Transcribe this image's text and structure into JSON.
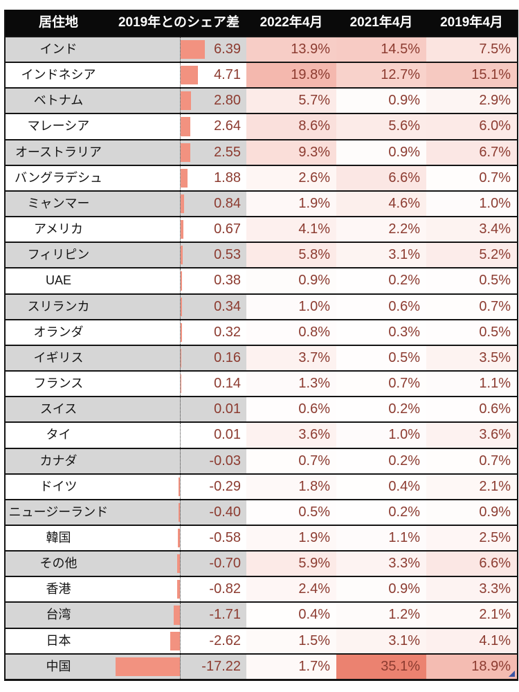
{
  "chart_data": {
    "type": "table",
    "title": "",
    "columns": [
      "居住地",
      "2019年とのシェア差",
      "2022年4月",
      "2021年4月",
      "2019年4月"
    ],
    "rows": [
      {
        "name": "インド",
        "diff": 6.39,
        "apr2022": 13.9,
        "apr2021": 14.5,
        "apr2019": 7.5
      },
      {
        "name": "インドネシア",
        "diff": 4.71,
        "apr2022": 19.8,
        "apr2021": 12.7,
        "apr2019": 15.1
      },
      {
        "name": "ベトナム",
        "diff": 2.8,
        "apr2022": 5.7,
        "apr2021": 0.9,
        "apr2019": 2.9
      },
      {
        "name": "マレーシア",
        "diff": 2.64,
        "apr2022": 8.6,
        "apr2021": 5.6,
        "apr2019": 6.0
      },
      {
        "name": "オーストラリア",
        "diff": 2.55,
        "apr2022": 9.3,
        "apr2021": 0.9,
        "apr2019": 6.7
      },
      {
        "name": "バングラデシュ",
        "diff": 1.88,
        "apr2022": 2.6,
        "apr2021": 6.6,
        "apr2019": 0.7
      },
      {
        "name": "ミャンマー",
        "diff": 0.84,
        "apr2022": 1.9,
        "apr2021": 4.6,
        "apr2019": 1.0
      },
      {
        "name": "アメリカ",
        "diff": 0.67,
        "apr2022": 4.1,
        "apr2021": 2.2,
        "apr2019": 3.4
      },
      {
        "name": "フィリピン",
        "diff": 0.53,
        "apr2022": 5.8,
        "apr2021": 3.1,
        "apr2019": 5.2
      },
      {
        "name": "UAE",
        "diff": 0.38,
        "apr2022": 0.9,
        "apr2021": 0.2,
        "apr2019": 0.5
      },
      {
        "name": "スリランカ",
        "diff": 0.34,
        "apr2022": 1.0,
        "apr2021": 0.6,
        "apr2019": 0.7
      },
      {
        "name": "オランダ",
        "diff": 0.32,
        "apr2022": 0.8,
        "apr2021": 0.3,
        "apr2019": 0.5
      },
      {
        "name": "イギリス",
        "diff": 0.16,
        "apr2022": 3.7,
        "apr2021": 0.5,
        "apr2019": 3.5
      },
      {
        "name": "フランス",
        "diff": 0.14,
        "apr2022": 1.3,
        "apr2021": 0.7,
        "apr2019": 1.1
      },
      {
        "name": "スイス",
        "diff": 0.01,
        "apr2022": 0.6,
        "apr2021": 0.2,
        "apr2019": 0.6
      },
      {
        "name": "タイ",
        "diff": 0.01,
        "apr2022": 3.6,
        "apr2021": 1.0,
        "apr2019": 3.6
      },
      {
        "name": "カナダ",
        "diff": -0.03,
        "apr2022": 0.7,
        "apr2021": 0.2,
        "apr2019": 0.7
      },
      {
        "name": "ドイツ",
        "diff": -0.29,
        "apr2022": 1.8,
        "apr2021": 0.4,
        "apr2019": 2.1
      },
      {
        "name": "ニュージーランド",
        "diff": -0.4,
        "apr2022": 0.5,
        "apr2021": 0.2,
        "apr2019": 0.9
      },
      {
        "name": "韓国",
        "diff": -0.58,
        "apr2022": 1.9,
        "apr2021": 1.1,
        "apr2019": 2.5
      },
      {
        "name": "その他",
        "diff": -0.7,
        "apr2022": 5.9,
        "apr2021": 3.3,
        "apr2019": 6.6
      },
      {
        "name": "香港",
        "diff": -0.82,
        "apr2022": 2.4,
        "apr2021": 0.9,
        "apr2019": 3.3
      },
      {
        "name": "台湾",
        "diff": -1.71,
        "apr2022": 0.4,
        "apr2021": 1.2,
        "apr2019": 2.1
      },
      {
        "name": "日本",
        "diff": -2.62,
        "apr2022": 1.5,
        "apr2021": 3.1,
        "apr2019": 4.1
      },
      {
        "name": "中国",
        "diff": -17.22,
        "apr2022": 1.7,
        "apr2021": 35.1,
        "apr2019": 18.9
      }
    ],
    "conditional_formatting": {
      "share_diff_databar": {
        "min": -17.22,
        "max": 6.39,
        "bar_color": "#f29280",
        "axis": "dotted vertical line between negative and positive bars"
      },
      "percent_color_scale": {
        "min_value": 0,
        "max_value": 35.1,
        "min_color": "#ffffff",
        "max_color": "#eb8270"
      }
    },
    "layout_hints": {
      "striped_rows": "odd rows gray, even rows white (name and diff columns only)",
      "header": "black background, white bold text"
    }
  },
  "colors": {
    "header_bg": "#0a0a0a",
    "header_text": "#ffffff",
    "stripe_gray": "#d6d6d6",
    "stripe_white": "#ffffff",
    "bar_fill": "#f29280",
    "number_text": "#8c3b30",
    "name_text": "#141414",
    "border": "#141414",
    "scale_max_color": "#eb8270",
    "corner_mark": "#3a55a4"
  }
}
